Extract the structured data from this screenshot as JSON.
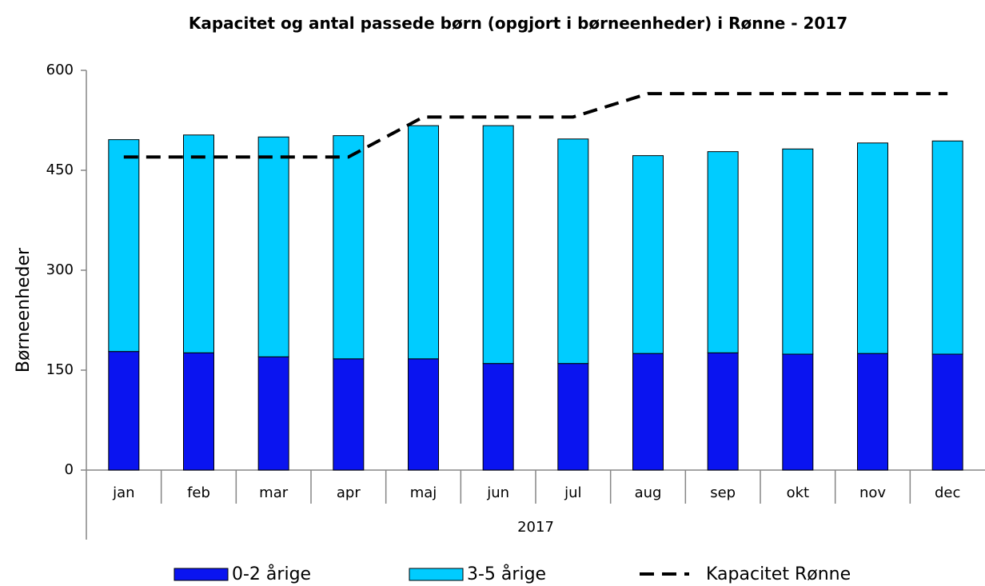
{
  "chart_data": {
    "type": "bar",
    "stacked": true,
    "title": "Kapacitet og antal passede børn (opgjort i børneenheder) i Rønne - 2017",
    "ylabel": "Børneenheder",
    "xlabel": "2017",
    "categories": [
      "jan",
      "feb",
      "mar",
      "apr",
      "maj",
      "jun",
      "jul",
      "aug",
      "sep",
      "okt",
      "nov",
      "dec"
    ],
    "series": [
      {
        "name": "0-2 årige",
        "color": "#0a14f0",
        "values": [
          178,
          176,
          170,
          167,
          167,
          160,
          160,
          175,
          176,
          174,
          175,
          174
        ]
      },
      {
        "name": "3-5 årige",
        "color": "#00ccff",
        "values": [
          318,
          327,
          330,
          335,
          350,
          357,
          337,
          297,
          302,
          308,
          316,
          320
        ]
      },
      {
        "name": "Kapacitet Rønne",
        "type": "line",
        "line_style": "dashed",
        "color": "#000000",
        "values": [
          470,
          470,
          470,
          470,
          530,
          530,
          530,
          565,
          565,
          565,
          565,
          565
        ]
      }
    ],
    "ylim": [
      0,
      600
    ],
    "yticks": [
      0,
      150,
      300,
      450,
      600
    ],
    "grid": false,
    "legend": "bottom"
  }
}
